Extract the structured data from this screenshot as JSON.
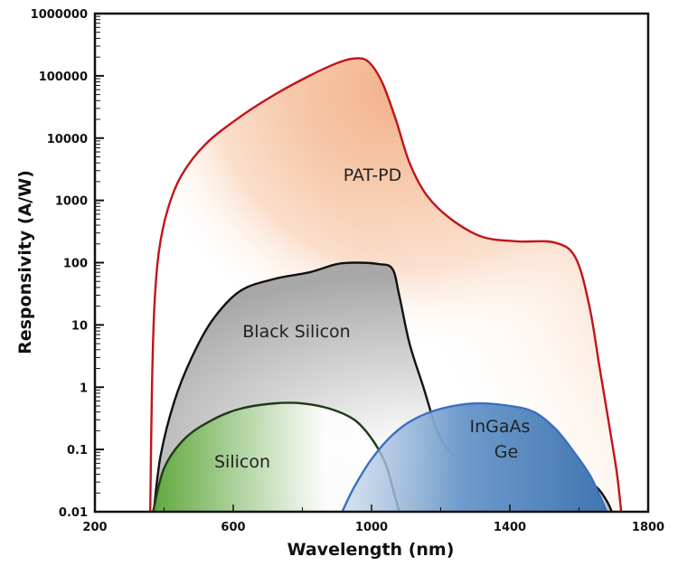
{
  "chart_data": {
    "type": "area",
    "title": "",
    "xlabel": "Wavelength (nm)",
    "ylabel": "Responsivity (A/W)",
    "xlim": [
      200,
      1800
    ],
    "ylim": [
      0.01,
      1000000
    ],
    "yscale": "log",
    "grid": false,
    "legend": "none (inline labels)",
    "x_ticks": [
      "200",
      "600",
      "1000",
      "1400",
      "1800"
    ],
    "y_ticks": [
      "0.01",
      "0.1",
      "1",
      "10",
      "100",
      "1000",
      "10000",
      "100000",
      "1000000"
    ],
    "series": [
      {
        "name": "PAT-PD",
        "color": "#c0141b",
        "fill": "#f0a070",
        "x": [
          360,
          365,
          372,
          385,
          410,
          450,
          520,
          620,
          720,
          820,
          900,
          950,
          990,
          1030,
          1070,
          1110,
          1160,
          1230,
          1320,
          1420,
          1530,
          1590,
          1630,
          1660,
          1690,
          1710,
          1722
        ],
        "y": [
          0.01,
          1,
          20,
          150,
          700,
          2500,
          8000,
          22000,
          50000,
          100000,
          160000,
          190000,
          170000,
          80000,
          20000,
          4000,
          1200,
          500,
          260,
          220,
          210,
          120,
          20,
          2,
          0.2,
          0.04,
          0.01
        ]
      },
      {
        "name": "Black Silicon",
        "color": "#111111",
        "fill": "#b8b8b8",
        "x": [
          370,
          390,
          430,
          480,
          540,
          620,
          720,
          820,
          900,
          960,
          1020,
          1060,
          1080,
          1110,
          1150,
          1190,
          1230,
          1300,
          1400,
          1500,
          1600,
          1650,
          1680,
          1695
        ],
        "y": [
          0.01,
          0.08,
          0.6,
          3,
          12,
          35,
          55,
          70,
          95,
          100,
          95,
          80,
          30,
          5,
          1,
          0.2,
          0.09,
          0.06,
          0.05,
          0.045,
          0.035,
          0.025,
          0.015,
          0.01
        ]
      },
      {
        "name": "Silicon",
        "color": "#1f3a1a",
        "fill": "#6fb04c",
        "x": [
          368,
          400,
          460,
          540,
          620,
          720,
          800,
          880,
          950,
          1000,
          1040,
          1065,
          1080
        ],
        "y": [
          0.01,
          0.05,
          0.15,
          0.3,
          0.45,
          0.55,
          0.55,
          0.45,
          0.3,
          0.15,
          0.06,
          0.02,
          0.01
        ]
      },
      {
        "name": "InGaAs Ge",
        "color": "#3a6fc4",
        "fill": "#4f86c0",
        "x": [
          915,
          950,
          1000,
          1060,
          1120,
          1200,
          1300,
          1400,
          1470,
          1530,
          1580,
          1630,
          1660,
          1680
        ],
        "y": [
          0.01,
          0.025,
          0.07,
          0.17,
          0.3,
          0.45,
          0.55,
          0.5,
          0.4,
          0.22,
          0.1,
          0.04,
          0.018,
          0.01
        ]
      }
    ],
    "annotations": [
      "PAT-PD",
      "Black Silicon",
      "Silicon",
      "InGaAs",
      "Ge"
    ]
  }
}
